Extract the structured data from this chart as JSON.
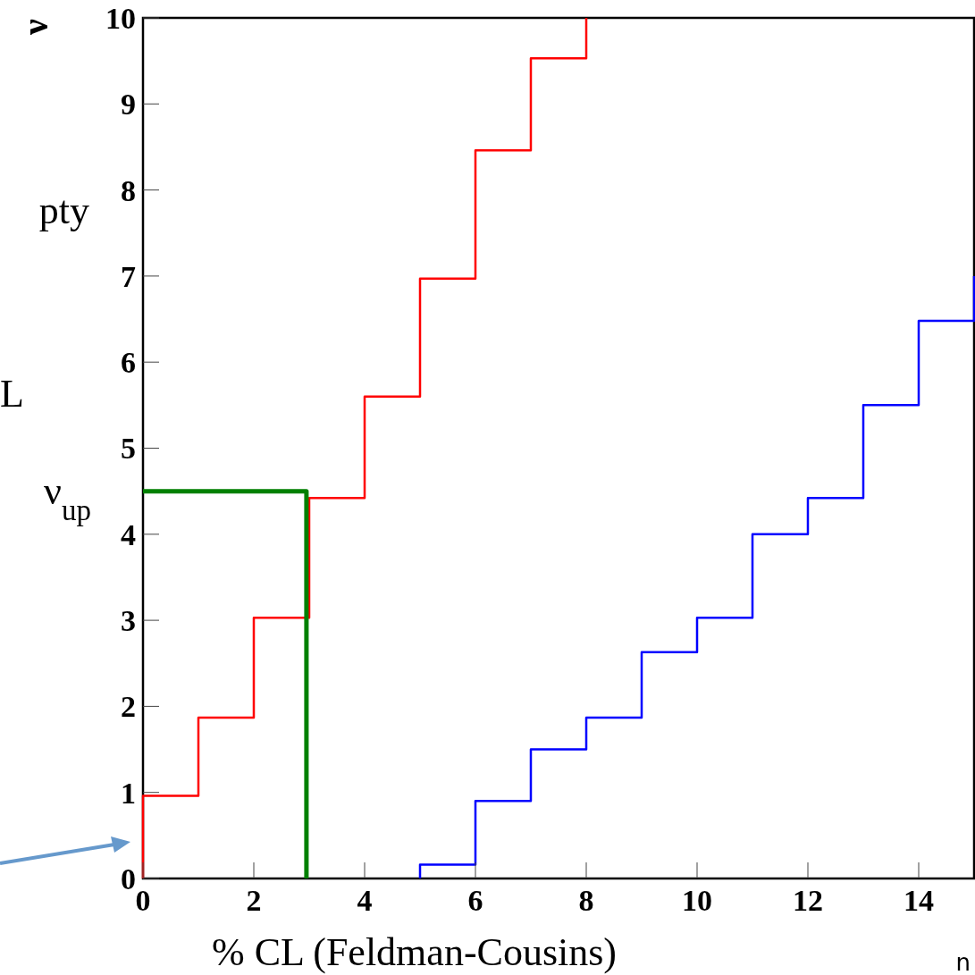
{
  "chart_data": {
    "type": "step",
    "xlabel": "n",
    "ylabel": "ν",
    "xlim": [
      0,
      15
    ],
    "ylim": [
      0,
      10
    ],
    "xticks": [
      0,
      2,
      4,
      6,
      8,
      10,
      12,
      14
    ],
    "yticks": [
      0,
      1,
      2,
      3,
      4,
      5,
      6,
      7,
      8,
      9,
      10
    ],
    "grid": false,
    "series": [
      {
        "color": "#ff0000",
        "x": [
          0,
          0,
          1,
          2,
          3,
          4,
          5,
          6,
          7,
          8,
          8
        ],
        "values": [
          0,
          0.96,
          1.87,
          3.03,
          4.42,
          5.6,
          6.97,
          8.46,
          9.53,
          9.53,
          10
        ]
      },
      {
        "color": "#0000ff",
        "x": [
          5,
          5,
          6,
          7,
          8,
          9,
          10,
          11,
          12,
          13,
          14,
          15,
          15
        ],
        "values": [
          0,
          0.16,
          0.9,
          1.5,
          1.87,
          2.63,
          3.03,
          4.0,
          4.42,
          5.5,
          6.48,
          6.48,
          7.0
        ]
      },
      {
        "type": "line",
        "color": "#008000",
        "x": [
          0,
          2.95,
          2.95
        ],
        "values": [
          4.5,
          4.5,
          0
        ]
      }
    ],
    "annotations": [
      "pty",
      "L",
      "% CL (Feldman-Cousins)",
      {
        "text": "ν$_{up}$",
        "x": 0,
        "y": 4.5
      }
    ]
  }
}
